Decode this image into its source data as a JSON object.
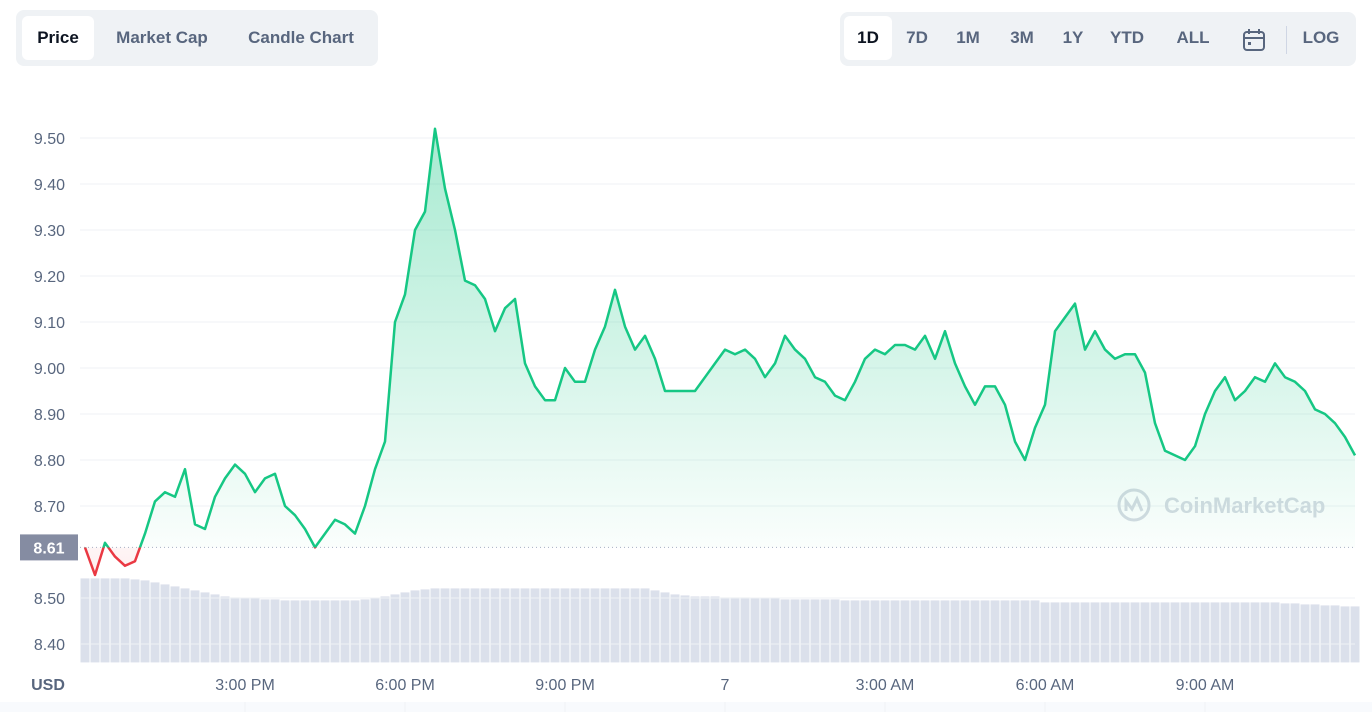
{
  "tabs": [
    "Price",
    "Market Cap",
    "Candle Chart"
  ],
  "ranges": [
    "1D",
    "7D",
    "1M",
    "3M",
    "1Y",
    "YTD",
    "ALL"
  ],
  "log_label": "LOG",
  "chart_data": {
    "type": "line",
    "axis_label": "USD",
    "watermark": "CoinMarketCap",
    "color": "#16c784",
    "down_color": "#ea3943",
    "reference_value": 8.61,
    "grid": true,
    "ylim": [
      8.36,
      9.58
    ],
    "yticks": [
      {
        "value": 8.4,
        "label": "8.40"
      },
      {
        "value": 8.5,
        "label": "8.50"
      },
      {
        "value": 8.7,
        "label": "8.70"
      },
      {
        "value": 8.8,
        "label": "8.80"
      },
      {
        "value": 8.9,
        "label": "8.90"
      },
      {
        "value": 9.0,
        "label": "9.00"
      },
      {
        "value": 9.1,
        "label": "9.10"
      },
      {
        "value": 9.2,
        "label": "9.20"
      },
      {
        "value": 9.3,
        "label": "9.30"
      },
      {
        "value": 9.4,
        "label": "9.40"
      },
      {
        "value": 9.5,
        "label": "9.50"
      }
    ],
    "categories": [
      null,
      null,
      null,
      null,
      null,
      null,
      null,
      null,
      null,
      null,
      null,
      null,
      null,
      null,
      null,
      null,
      "3:00 PM",
      null,
      null,
      null,
      null,
      null,
      null,
      null,
      null,
      null,
      null,
      null,
      null,
      null,
      null,
      null,
      "6:00 PM",
      null,
      null,
      null,
      null,
      null,
      null,
      null,
      null,
      null,
      null,
      null,
      null,
      null,
      null,
      null,
      "9:00 PM",
      null,
      null,
      null,
      null,
      null,
      null,
      null,
      null,
      null,
      null,
      null,
      null,
      null,
      null,
      null,
      "7",
      null,
      null,
      null,
      null,
      null,
      null,
      null,
      null,
      null,
      null,
      null,
      null,
      null,
      null,
      null,
      "3:00 AM",
      null,
      null,
      null,
      null,
      null,
      null,
      null,
      null,
      null,
      null,
      null,
      null,
      null,
      null,
      null,
      "6:00 AM",
      null,
      null,
      null,
      null,
      null,
      null,
      null,
      null,
      null,
      null,
      null,
      null,
      null,
      null,
      null,
      "9:00 AM",
      null,
      null,
      null,
      null,
      null,
      null,
      null,
      null,
      null,
      null,
      null,
      null,
      null,
      null,
      null
    ],
    "values": [
      8.61,
      8.55,
      8.62,
      8.59,
      8.57,
      8.58,
      8.64,
      8.71,
      8.73,
      8.72,
      8.78,
      8.66,
      8.65,
      8.72,
      8.76,
      8.79,
      8.77,
      8.73,
      8.76,
      8.77,
      8.7,
      8.68,
      8.65,
      8.61,
      8.64,
      8.67,
      8.66,
      8.64,
      8.7,
      8.78,
      8.84,
      9.1,
      9.16,
      9.3,
      9.34,
      9.52,
      9.39,
      9.3,
      9.19,
      9.18,
      9.15,
      9.08,
      9.13,
      9.15,
      9.01,
      8.96,
      8.93,
      8.93,
      9.0,
      8.97,
      8.97,
      9.04,
      9.09,
      9.17,
      9.09,
      9.04,
      9.07,
      9.02,
      8.95,
      8.95,
      8.95,
      8.95,
      8.98,
      9.01,
      9.04,
      9.03,
      9.04,
      9.02,
      8.98,
      9.01,
      9.07,
      9.04,
      9.02,
      8.98,
      8.97,
      8.94,
      8.93,
      8.97,
      9.02,
      9.04,
      9.03,
      9.05,
      9.05,
      9.04,
      9.07,
      9.02,
      9.08,
      9.01,
      8.96,
      8.92,
      8.96,
      8.96,
      8.92,
      8.84,
      8.8,
      8.87,
      8.92,
      9.08,
      9.11,
      9.14,
      9.04,
      9.08,
      9.04,
      9.02,
      9.03,
      9.03,
      8.99,
      8.88,
      8.82,
      8.81,
      8.8,
      8.83,
      8.9,
      8.95,
      8.98,
      8.93,
      8.95,
      8.98,
      8.97,
      9.01,
      8.98,
      8.97,
      8.95,
      8.91,
      8.9,
      8.88,
      8.85,
      8.81
    ],
    "volume": [
      84,
      84,
      84,
      84,
      84,
      83,
      82,
      80,
      78,
      76,
      74,
      72,
      70,
      68,
      66,
      65,
      64,
      64,
      63,
      63,
      62,
      62,
      62,
      62,
      62,
      62,
      62,
      62,
      63,
      64,
      66,
      68,
      70,
      72,
      73,
      74,
      74,
      74,
      74,
      74,
      74,
      74,
      74,
      74,
      74,
      74,
      74,
      74,
      74,
      74,
      74,
      74,
      74,
      74,
      74,
      74,
      74,
      72,
      70,
      68,
      67,
      66,
      66,
      66,
      65,
      65,
      65,
      64,
      64,
      64,
      63,
      63,
      63,
      63,
      63,
      63,
      62,
      62,
      62,
      62,
      62,
      62,
      62,
      62,
      62,
      62,
      62,
      62,
      62,
      62,
      62,
      62,
      62,
      62,
      62,
      62,
      60,
      60,
      60,
      60,
      60,
      60,
      60,
      60,
      60,
      60,
      60,
      60,
      60,
      60,
      60,
      60,
      60,
      60,
      60,
      60,
      60,
      60,
      60,
      60,
      59,
      59,
      58,
      58,
      57,
      57,
      56,
      56
    ]
  }
}
